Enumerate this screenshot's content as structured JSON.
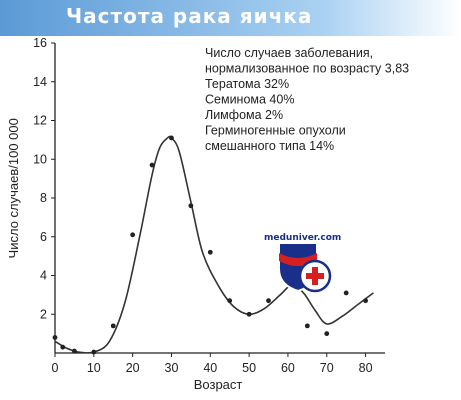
{
  "header": {
    "title": "Частота рака яичка"
  },
  "watermark": {
    "text": "meduniver.com"
  },
  "colors": {
    "header_start": "#5b9ad6",
    "header_end": "#ffffff",
    "curve": "#333333",
    "points": "#222222",
    "logo_red": "#d62020",
    "logo_blue": "#1a2f8a"
  },
  "chart_data": {
    "type": "scatter",
    "title": "",
    "xlabel": "Возраст",
    "ylabel": "Число случаев/100 000",
    "xlim": [
      0,
      85
    ],
    "ylim": [
      0,
      16
    ],
    "x_ticks": [
      "0",
      "10",
      "20",
      "30",
      "40",
      "50",
      "60",
      "70",
      "80"
    ],
    "y_ticks": [
      "2",
      "4",
      "6",
      "8",
      "10",
      "12",
      "14",
      "16"
    ],
    "grid": false,
    "points": [
      {
        "x": 0,
        "y": 0.8
      },
      {
        "x": 2,
        "y": 0.3
      },
      {
        "x": 5,
        "y": 0.1
      },
      {
        "x": 10,
        "y": 0.05
      },
      {
        "x": 15,
        "y": 1.4
      },
      {
        "x": 20,
        "y": 6.1
      },
      {
        "x": 25,
        "y": 9.7
      },
      {
        "x": 30,
        "y": 11.1
      },
      {
        "x": 35,
        "y": 7.6
      },
      {
        "x": 40,
        "y": 5.2
      },
      {
        "x": 45,
        "y": 2.7
      },
      {
        "x": 50,
        "y": 2.0
      },
      {
        "x": 55,
        "y": 2.7
      },
      {
        "x": 65,
        "y": 1.4
      },
      {
        "x": 70,
        "y": 1.0
      },
      {
        "x": 75,
        "y": 3.1
      },
      {
        "x": 80,
        "y": 2.7
      }
    ],
    "curve": {
      "x": [
        0,
        3,
        6,
        10,
        14,
        18,
        22,
        25,
        27,
        29,
        30,
        32,
        35,
        38,
        42,
        46,
        50,
        54,
        58,
        61,
        64,
        67,
        70,
        74,
        78,
        82
      ],
      "y": [
        0.6,
        0.25,
        0.05,
        0.05,
        0.6,
        2.6,
        6.2,
        9.2,
        10.6,
        11.1,
        11.1,
        10.4,
        7.8,
        5.2,
        3.5,
        2.4,
        2.0,
        2.3,
        3.0,
        3.5,
        3.1,
        2.2,
        1.5,
        1.9,
        2.5,
        3.1
      ]
    },
    "annotations": [
      "Число случаев заболевания,",
      "нормализованное по возрасту 3,83",
      "Тератома 32%",
      "Семинома 40%",
      "Лимфома 2%",
      "Герминогенные опухоли",
      "смешанного типа 14%"
    ]
  }
}
